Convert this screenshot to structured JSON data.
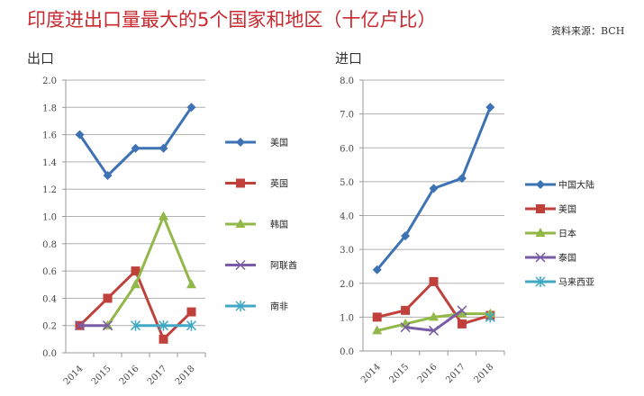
{
  "title": "印度进出口量最大的5个国家和地区（十亿卢比）",
  "source": "资料来源：BCH",
  "chart_data": [
    {
      "type": "line",
      "title": "出口",
      "categories": [
        "2014",
        "2015",
        "2016",
        "2017",
        "2018"
      ],
      "ylim": [
        0,
        2.0
      ],
      "yticks": [
        "0.0",
        "0.2",
        "0.4",
        "0.6",
        "0.8",
        "1.0",
        "1.2",
        "1.4",
        "1.6",
        "1.8",
        "2.0"
      ],
      "grid": true,
      "legend": "right",
      "series": [
        {
          "name": "美国",
          "values": [
            1.6,
            1.3,
            1.5,
            1.5,
            1.8
          ],
          "color": "#3d72b4",
          "marker": "diamond"
        },
        {
          "name": "英国",
          "values": [
            0.2,
            0.4,
            0.6,
            0.1,
            0.3
          ],
          "color": "#c0403c",
          "marker": "square"
        },
        {
          "name": "韩国",
          "values": [
            null,
            0.2,
            0.5,
            1.0,
            0.5
          ],
          "color": "#92b84a",
          "marker": "triangle"
        },
        {
          "name": "阿联酋",
          "values": [
            0.2,
            0.2,
            null,
            null,
            null
          ],
          "color": "#7a5ca6",
          "marker": "x"
        },
        {
          "name": "南非",
          "values": [
            null,
            null,
            0.2,
            0.2,
            0.2
          ],
          "color": "#40a8c4",
          "marker": "star"
        }
      ]
    },
    {
      "type": "line",
      "title": "进口",
      "categories": [
        "2014",
        "2015",
        "2016",
        "2017",
        "2018"
      ],
      "ylim": [
        0,
        8.0
      ],
      "yticks": [
        "0.0",
        "1.0",
        "2.0",
        "3.0",
        "4.0",
        "5.0",
        "6.0",
        "7.0",
        "8.0"
      ],
      "grid": true,
      "legend": "right",
      "series": [
        {
          "name": "中国大陆",
          "values": [
            2.4,
            3.4,
            4.8,
            5.1,
            7.2
          ],
          "color": "#3d72b4",
          "marker": "diamond"
        },
        {
          "name": "美国",
          "values": [
            1.0,
            1.2,
            2.05,
            0.8,
            1.05
          ],
          "color": "#c0403c",
          "marker": "square"
        },
        {
          "name": "日本",
          "values": [
            0.6,
            0.8,
            1.0,
            1.1,
            1.1
          ],
          "color": "#92b84a",
          "marker": "triangle"
        },
        {
          "name": "泰国",
          "values": [
            null,
            0.7,
            0.6,
            1.2,
            null
          ],
          "color": "#7a5ca6",
          "marker": "x"
        },
        {
          "name": "马来西亚",
          "values": [
            null,
            null,
            null,
            null,
            1.0
          ],
          "color": "#40a8c4",
          "marker": "star"
        }
      ]
    }
  ]
}
